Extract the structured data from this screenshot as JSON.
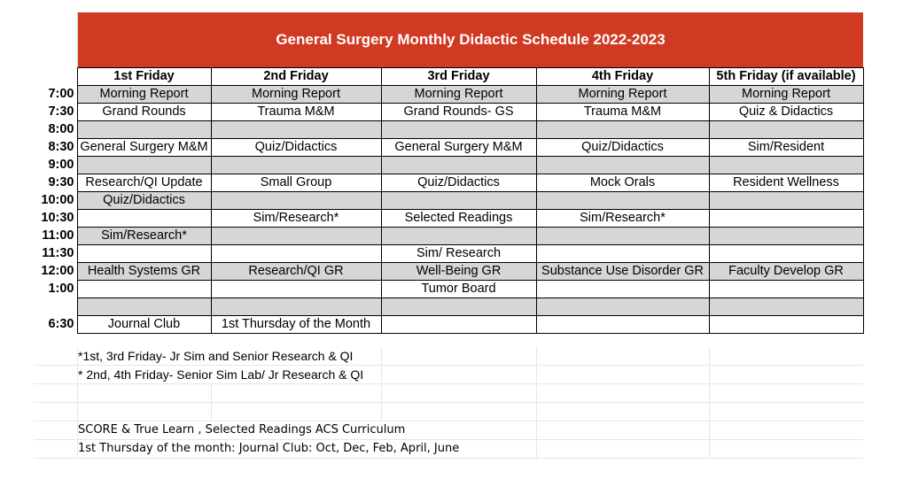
{
  "title": "General Surgery Monthly Didactic Schedule 2022-2023",
  "columns": [
    "1st Friday",
    "2nd Friday",
    "3rd Friday",
    "4th Friday",
    "5th Friday (if available)"
  ],
  "rows": [
    {
      "time": "7:00",
      "cells": [
        "Morning Report",
        "Morning Report",
        "Morning Report",
        "Morning Report",
        "Morning Report"
      ]
    },
    {
      "time": "7:30",
      "cells": [
        "Grand Rounds",
        "Trauma M&M",
        "Grand Rounds- GS",
        "Trauma M&M",
        "Quiz & Didactics"
      ]
    },
    {
      "time": "8:00",
      "cells": [
        "",
        "",
        "",
        "",
        ""
      ]
    },
    {
      "time": "8:30",
      "cells": [
        "General Surgery M&M",
        "Quiz/Didactics",
        "General Surgery M&M",
        "Quiz/Didactics",
        "Sim/Resident"
      ]
    },
    {
      "time": "9:00",
      "cells": [
        "",
        "",
        "",
        "",
        ""
      ]
    },
    {
      "time": "9:30",
      "cells": [
        "Research/QI Update",
        "Small Group",
        "Quiz/Didactics",
        "Mock Orals",
        "Resident Wellness"
      ]
    },
    {
      "time": "10:00",
      "cells": [
        "Quiz/Didactics",
        "",
        "",
        "",
        ""
      ]
    },
    {
      "time": "10:30",
      "cells": [
        "",
        "Sim/Research*",
        "Selected Readings",
        "Sim/Research*",
        ""
      ]
    },
    {
      "time": "11:00",
      "cells": [
        "Sim/Research*",
        "",
        "",
        "",
        ""
      ]
    },
    {
      "time": "11:30",
      "cells": [
        "",
        "",
        "Sim/ Research",
        "",
        ""
      ]
    },
    {
      "time": "12:00",
      "cells": [
        "Health Systems GR",
        "Research/QI GR",
        "Well-Being GR",
        "Substance Use Disorder GR",
        "Faculty Develop GR"
      ]
    },
    {
      "time": "1:00",
      "cells": [
        "",
        "",
        "Tumor Board",
        "",
        ""
      ]
    },
    {
      "time": "",
      "cells": [
        "",
        "",
        "",
        "",
        ""
      ]
    },
    {
      "time": "6:30",
      "cells": [
        "Journal Club",
        "1st Thursday of the Month",
        "",
        "",
        ""
      ]
    }
  ],
  "notes": [
    "*1st, 3rd Friday- Jr Sim and Senior Research & QI",
    "* 2nd, 4th Friday- Senior Sim Lab/ Jr Research & QI",
    "",
    "",
    "SCORE & True Learn , Selected Readings ACS Curriculum",
    "1st Thursday of the month: Journal Club: Oct, Dec, Feb, April, June"
  ]
}
